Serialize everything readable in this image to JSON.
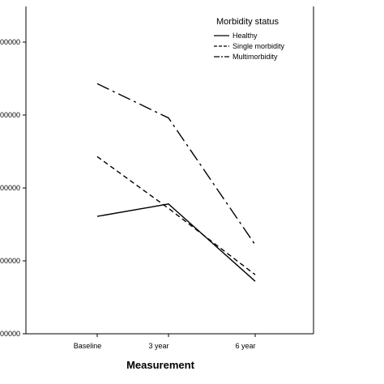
{
  "chart_data": {
    "type": "line",
    "title": "",
    "xlabel": "Measurement",
    "ylabel": "",
    "categories": [
      "Baseline",
      "3 year",
      "6 year"
    ],
    "y_tick_labels": [
      "00000",
      "00000",
      "00000",
      "00000",
      "00000"
    ],
    "ylim": [
      0,
      4
    ],
    "grid": false,
    "legend": {
      "title": "Morbidity status",
      "placement": "top-right"
    },
    "series": [
      {
        "name": "Healthy",
        "values": [
          1.61,
          1.78,
          0.72
        ],
        "style": "solid"
      },
      {
        "name": "Single morbidity",
        "values": [
          2.43,
          1.72,
          0.81
        ],
        "style": "dashed"
      },
      {
        "name": "Multimorbidity",
        "values": [
          3.43,
          2.96,
          1.22
        ],
        "style": "longdash"
      }
    ],
    "colors": {
      "line": "#000000",
      "axis": "#000000",
      "background": "#ffffff"
    }
  }
}
